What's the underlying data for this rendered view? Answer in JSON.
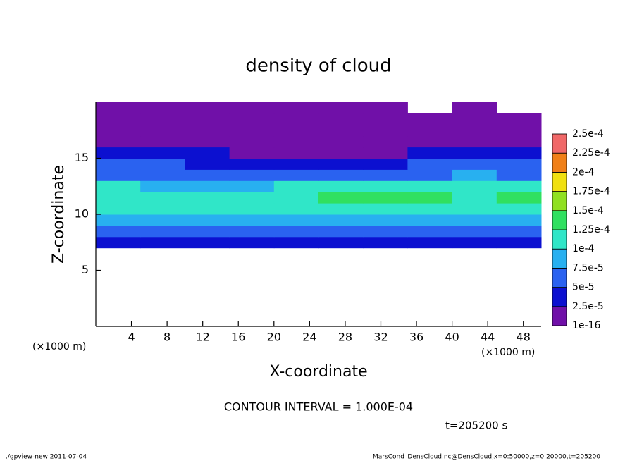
{
  "chart_data": {
    "type": "contour",
    "title": "density of cloud",
    "x_label": "X-coordinate",
    "y_label": "Z-coordinate",
    "x_unit": "(×1000 m)",
    "y_unit": "(×1000 m)",
    "contour_note": "CONTOUR INTERVAL = 1.000E-04",
    "time_label": "t=205200 s",
    "footer_left": "./gpview-new  2011-07-04",
    "footer_right": "MarsCond_DensCloud.nc@DensCloud,x=0:50000,z=0:20000,t=205200",
    "xlim": [
      0,
      50
    ],
    "ylim": [
      0,
      20
    ],
    "xticks": [
      4,
      8,
      12,
      16,
      20,
      24,
      28,
      32,
      36,
      40,
      44,
      48
    ],
    "yticks": [
      5,
      10,
      15
    ],
    "x": [
      2.5,
      7.5,
      12.5,
      17.5,
      22.5,
      27.5,
      32.5,
      37.5,
      42.5,
      47.5
    ],
    "y": [
      7.5,
      8.5,
      9.5,
      10.5,
      11.5,
      12.5,
      13.5,
      14.5,
      15.5,
      16.5,
      17.5,
      18.5,
      19.5
    ],
    "z": [
      [
        3e-05,
        3e-05,
        3e-05,
        3e-05,
        3e-05,
        3e-05,
        3e-05,
        3e-05,
        3e-05,
        3e-05
      ],
      [
        6e-05,
        6e-05,
        5.5e-05,
        6e-05,
        6e-05,
        6e-05,
        6e-05,
        6e-05,
        6e-05,
        6e-05
      ],
      [
        9e-05,
        8e-05,
        8e-05,
        8.5e-05,
        9e-05,
        8e-05,
        8e-05,
        7.5e-05,
        8e-05,
        9e-05
      ],
      [
        0.00011,
        0.000105,
        0.000105,
        0.00011,
        0.000115,
        0.00012,
        0.00012,
        0.00011,
        0.000105,
        0.000115
      ],
      [
        0.00012,
        0.00011,
        0.00011,
        0.000115,
        0.00012,
        0.00013,
        0.00013,
        0.000125,
        0.000115,
        0.000125
      ],
      [
        0.000105,
        9e-05,
        8e-05,
        9e-05,
        0.000105,
        0.00011,
        0.00011,
        0.000105,
        0.0001,
        0.000105
      ],
      [
        7e-05,
        7e-05,
        6e-05,
        5.5e-05,
        5e-05,
        6e-05,
        7e-05,
        7e-05,
        7.5e-05,
        7e-05
      ],
      [
        5.5e-05,
        5e-05,
        4e-05,
        3e-05,
        2.5e-05,
        3e-05,
        4e-05,
        5e-05,
        5e-05,
        5.5e-05
      ],
      [
        3.5e-05,
        3e-05,
        2.5e-05,
        2e-05,
        1.5e-05,
        1.5e-05,
        2e-05,
        2.5e-05,
        3e-05,
        3.5e-05
      ],
      [
        2e-05,
        1.5e-05,
        1e-05,
        1e-05,
        1e-05,
        1e-05,
        1e-05,
        1e-05,
        1.5e-05,
        2e-05
      ],
      [
        1e-05,
        1e-05,
        1e-05,
        1e-05,
        1e-05,
        1e-05,
        1e-05,
        1e-05,
        1e-05,
        1e-05
      ],
      [
        1e-05,
        1e-05,
        1e-05,
        1e-05,
        1e-05,
        1e-05,
        1e-05,
        1e-05,
        1e-05,
        1e-05
      ],
      [
        1e-05,
        1e-05,
        1e-05,
        1e-05,
        1e-05,
        1e-05,
        1e-05,
        null,
        1e-05,
        null
      ]
    ],
    "levels": [
      {
        "value": 1e-16,
        "label": "1e-16"
      },
      {
        "value": 2.5e-05,
        "label": "2.5e-5"
      },
      {
        "value": 5e-05,
        "label": "5e-5"
      },
      {
        "value": 7.5e-05,
        "label": "7.5e-5"
      },
      {
        "value": 0.0001,
        "label": "1e-4"
      },
      {
        "value": 0.000125,
        "label": "1.25e-4"
      },
      {
        "value": 0.00015,
        "label": "1.5e-4"
      },
      {
        "value": 0.000175,
        "label": "1.75e-4"
      },
      {
        "value": 0.0002,
        "label": "2e-4"
      },
      {
        "value": 0.000225,
        "label": "2.25e-4"
      },
      {
        "value": 0.00025,
        "label": "2.5e-4"
      }
    ],
    "colors": [
      "#7010a8",
      "#0c10d0",
      "#2a62f0",
      "#28b0f0",
      "#30e6c8",
      "#30e060",
      "#90e020",
      "#f0e010",
      "#f08018",
      "#f06868"
    ]
  }
}
